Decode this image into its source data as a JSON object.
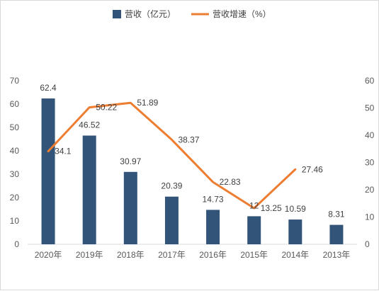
{
  "chart_data": {
    "type": "bar",
    "categories": [
      "2020年",
      "2019年",
      "2018年",
      "2017年",
      "2016年",
      "2015年",
      "2014年",
      "2013年"
    ],
    "series": [
      {
        "name": "营收（亿元）",
        "type": "bar",
        "axis": "left",
        "color": "#335479",
        "values": [
          62.4,
          46.52,
          30.97,
          20.39,
          14.73,
          12,
          10.59,
          8.31
        ],
        "labels": [
          "62.4",
          "46.52",
          "30.97",
          "20.39",
          "14.73",
          "12",
          "10.59",
          "8.31"
        ]
      },
      {
        "name": "营收增速（%）",
        "type": "line",
        "axis": "right",
        "color": "#ed7d31",
        "values": [
          34.1,
          50.22,
          51.89,
          38.37,
          22.83,
          13.25,
          27.46,
          null
        ],
        "labels": [
          "34.1",
          "50.22",
          "51.89",
          "38.37",
          "22.83",
          "13.25",
          "27.46",
          ""
        ]
      }
    ],
    "y_left": {
      "min": 0,
      "max": 70,
      "ticks": [
        0,
        10,
        20,
        30,
        40,
        50,
        60,
        70
      ]
    },
    "y_right": {
      "min": 0,
      "max": 60,
      "ticks": [
        0,
        10,
        20,
        30,
        40,
        50,
        60
      ]
    },
    "legend": {
      "position": "top"
    },
    "grid": false
  }
}
